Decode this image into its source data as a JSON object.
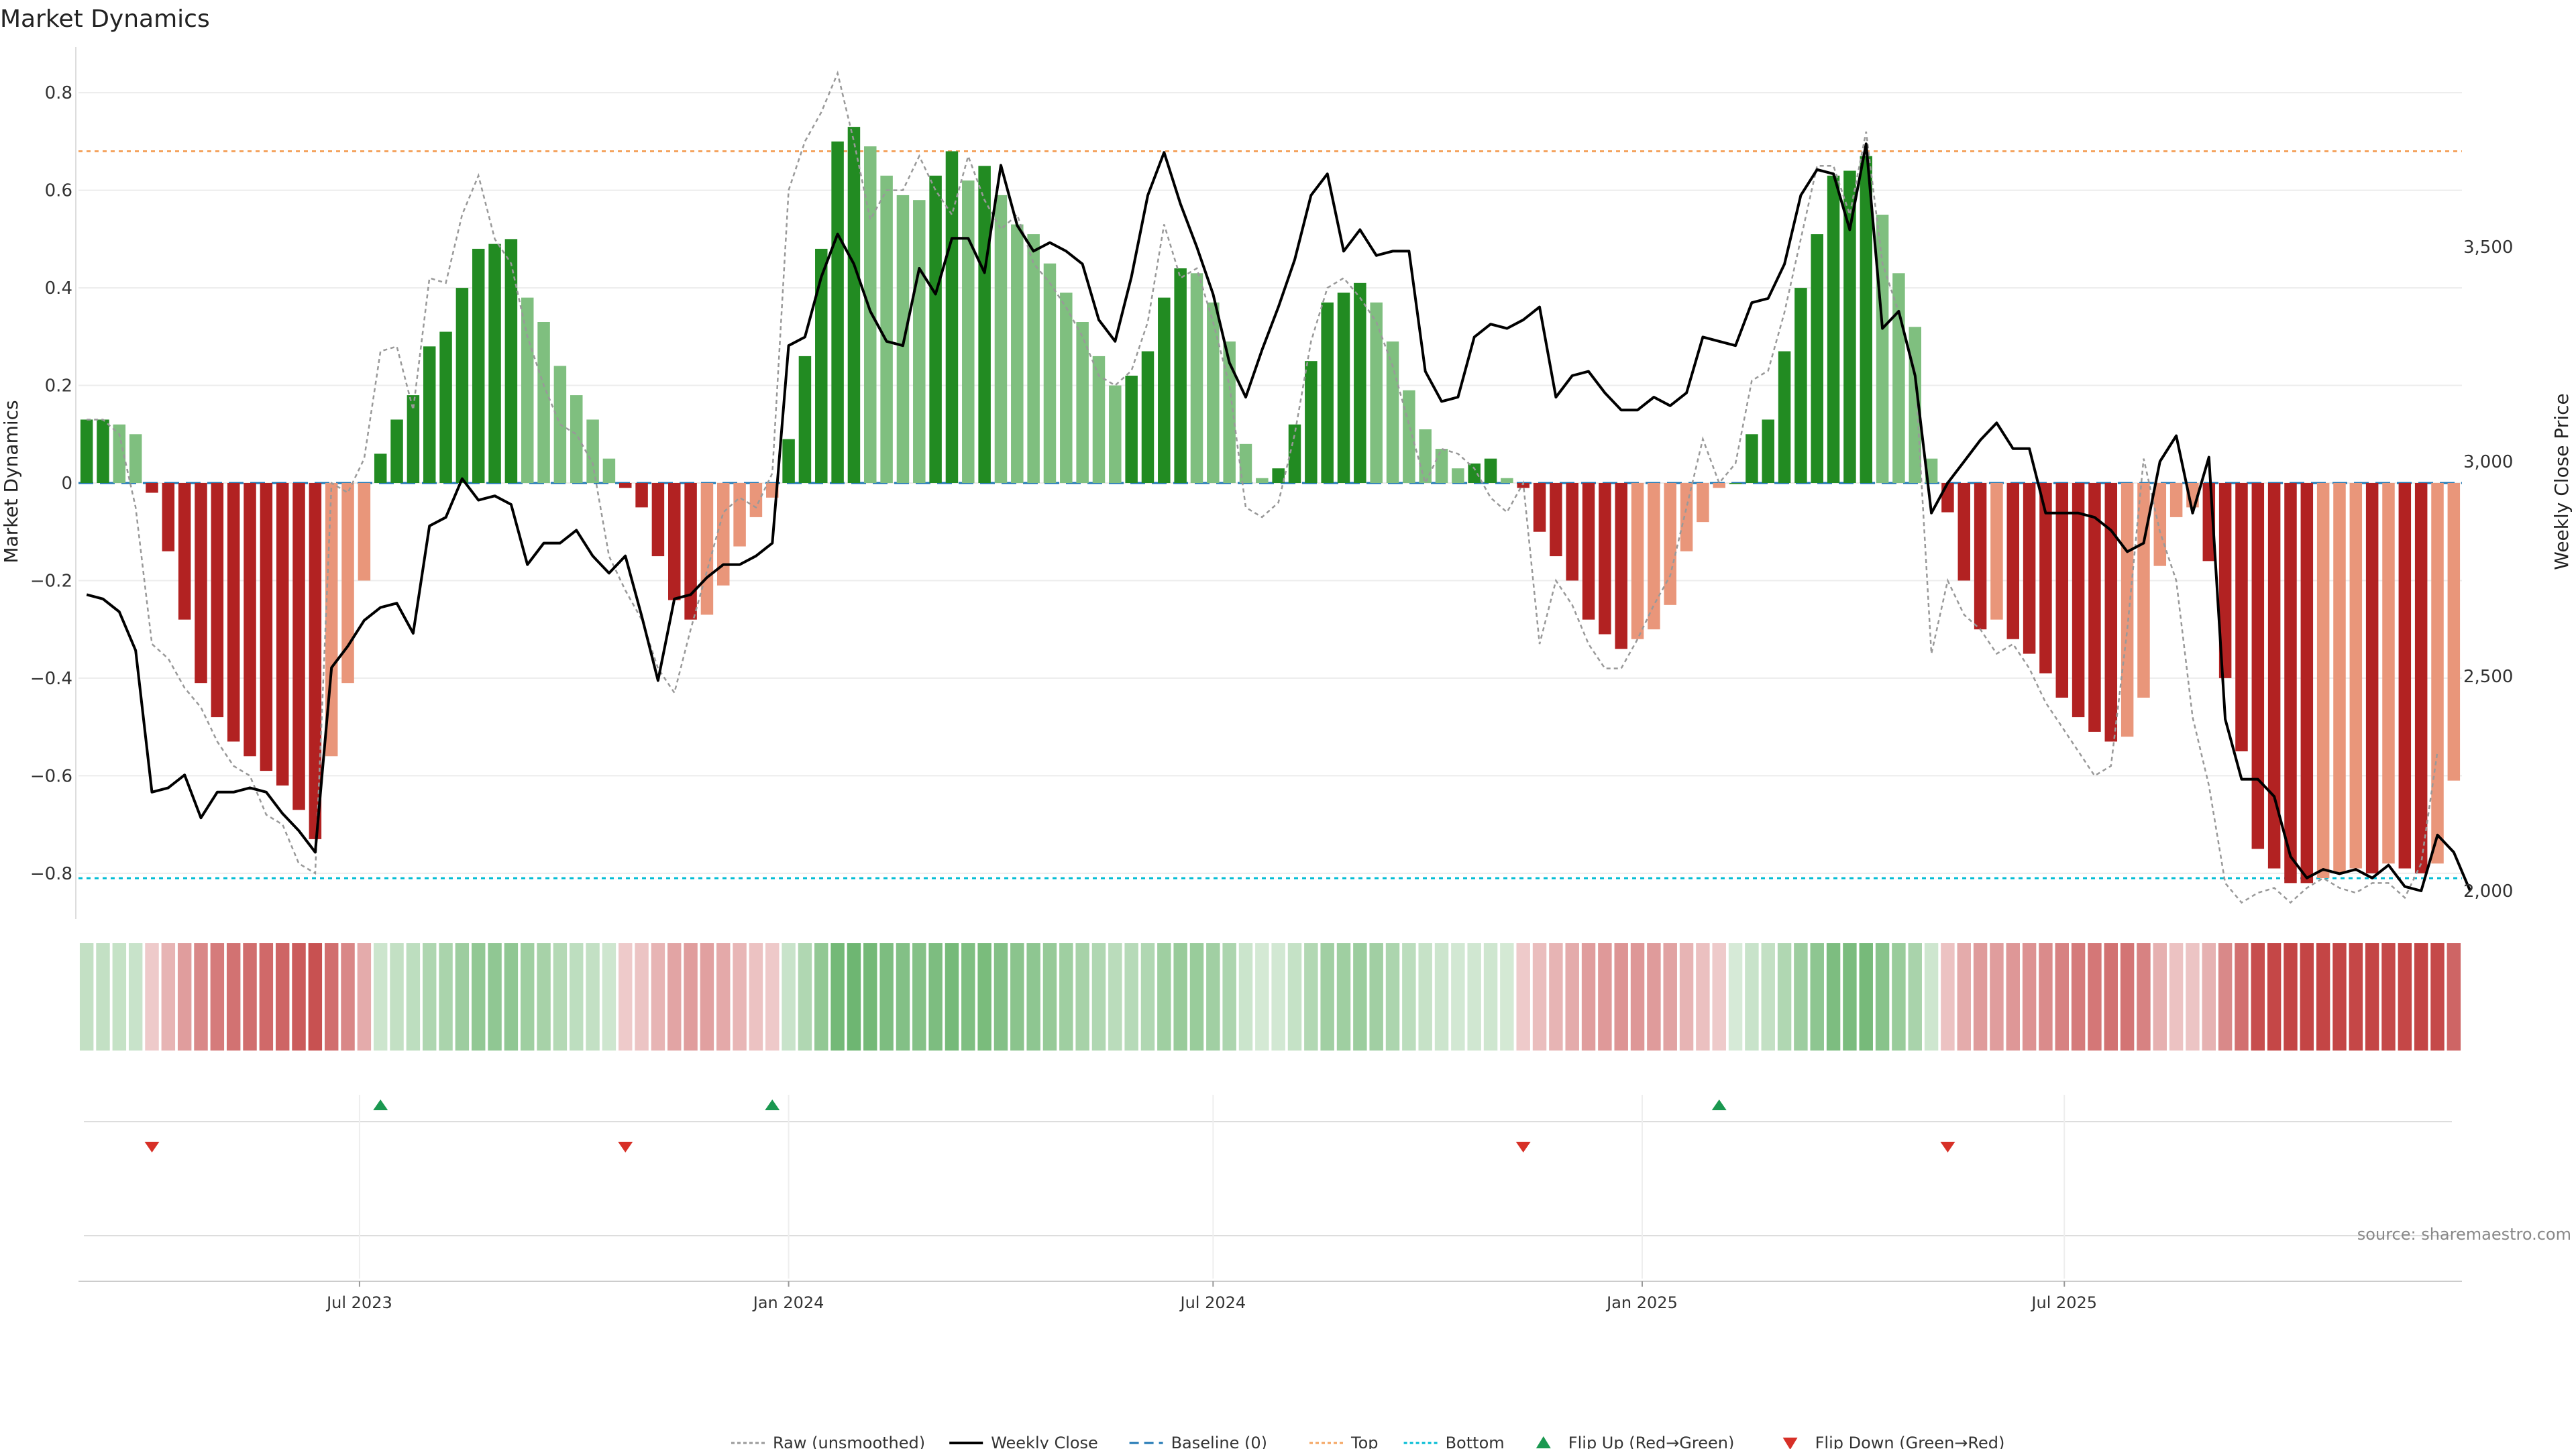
{
  "title": "Market Dynamics",
  "source_note": "source: sharemaestro.com",
  "chart_data": {
    "type": "bar",
    "start_date": "2023-03-06",
    "interval_days": 7,
    "ylabel_left": "Market Dynamics",
    "ylabel_right": "Weekly Close Price",
    "ylim_left": [
      -0.88,
      0.88
    ],
    "ylim_right": [
      1950,
      3950
    ],
    "yticks_left": [
      -0.8,
      -0.6,
      -0.4,
      -0.2,
      0,
      0.2,
      0.4,
      0.6,
      0.8
    ],
    "yticks_left_labels": [
      "−0.8",
      "−0.6",
      "−0.4",
      "−0.2",
      "0",
      "0.2",
      "0.4",
      "0.6",
      "0.8"
    ],
    "yticks_right": [
      2000,
      2500,
      3000,
      3500
    ],
    "yticks_right_labels": [
      "2,000",
      "2,500",
      "3,000",
      "3,500"
    ],
    "xticks": [
      {
        "date": "2023-07-01",
        "label": "Jul 2023"
      },
      {
        "date": "2024-01-01",
        "label": "Jan 2024"
      },
      {
        "date": "2024-07-01",
        "label": "Jul 2024"
      },
      {
        "date": "2025-01-01",
        "label": "Jan 2025"
      },
      {
        "date": "2025-07-01",
        "label": "Jul 2025"
      }
    ],
    "top_level": 0.68,
    "bottom_level": -0.81,
    "grid": true,
    "legend_position": "bottom-center",
    "colors": {
      "pos_strong": "#228b22",
      "pos_weak": "#7fbf7f",
      "neg_strong": "#b22222",
      "neg_weak": "#e9967a",
      "close": "#000000",
      "raw": "#999999",
      "baseline": "#1f77b4",
      "top": "#f4a460",
      "bottom": "#00bcd4",
      "flip_up": "#1a9850",
      "flip_down": "#d73027"
    },
    "series": [
      {
        "name": "Market Dynamics",
        "kind": "bars",
        "values": [
          0.13,
          0.13,
          0.12,
          0.1,
          -0.02,
          -0.14,
          -0.28,
          -0.41,
          -0.48,
          -0.53,
          -0.56,
          -0.59,
          -0.62,
          -0.67,
          -0.73,
          -0.56,
          -0.41,
          -0.2,
          0.06,
          0.13,
          0.18,
          0.28,
          0.31,
          0.4,
          0.48,
          0.49,
          0.5,
          0.38,
          0.33,
          0.24,
          0.18,
          0.13,
          0.05,
          -0.01,
          -0.05,
          -0.15,
          -0.24,
          -0.28,
          -0.27,
          -0.21,
          -0.13,
          -0.07,
          -0.03,
          0.09,
          0.26,
          0.48,
          0.7,
          0.73,
          0.69,
          0.63,
          0.59,
          0.58,
          0.63,
          0.68,
          0.62,
          0.65,
          0.59,
          0.53,
          0.51,
          0.45,
          0.39,
          0.33,
          0.26,
          0.2,
          0.22,
          0.27,
          0.38,
          0.44,
          0.43,
          0.37,
          0.29,
          0.08,
          0.01,
          0.03,
          0.12,
          0.25,
          0.37,
          0.39,
          0.41,
          0.37,
          0.29,
          0.19,
          0.11,
          0.07,
          0.03,
          0.04,
          0.05,
          0.01,
          -0.01,
          -0.1,
          -0.15,
          -0.2,
          -0.28,
          -0.31,
          -0.34,
          -0.32,
          -0.3,
          -0.25,
          -0.14,
          -0.08,
          -0.01,
          0.0,
          0.1,
          0.13,
          0.27,
          0.4,
          0.51,
          0.63,
          0.64,
          0.67,
          0.55,
          0.43,
          0.32,
          0.05,
          -0.06,
          -0.2,
          -0.3,
          -0.28,
          -0.32,
          -0.35,
          -0.39,
          -0.44,
          -0.48,
          -0.51,
          -0.53,
          -0.52,
          -0.44,
          -0.17,
          -0.07,
          -0.05,
          -0.16,
          -0.4,
          -0.55,
          -0.75,
          -0.79,
          -0.82,
          -0.82,
          -0.81,
          -0.8,
          -0.79,
          -0.8,
          -0.78,
          -0.79,
          -0.8,
          -0.78,
          -0.61
        ]
      },
      {
        "name": "Raw (unsmoothed)",
        "kind": "line",
        "values": [
          0.13,
          0.13,
          0.1,
          -0.05,
          -0.33,
          -0.36,
          -0.42,
          -0.46,
          -0.53,
          -0.58,
          -0.6,
          -0.68,
          -0.7,
          -0.78,
          -0.8,
          0.0,
          -0.02,
          0.05,
          0.27,
          0.28,
          0.15,
          0.42,
          0.41,
          0.55,
          0.63,
          0.5,
          0.45,
          0.3,
          0.2,
          0.12,
          0.1,
          0.04,
          -0.15,
          -0.22,
          -0.28,
          -0.38,
          -0.43,
          -0.3,
          -0.18,
          -0.06,
          -0.03,
          -0.05,
          0.02,
          0.6,
          0.7,
          0.76,
          0.84,
          0.7,
          0.54,
          0.6,
          0.6,
          0.67,
          0.6,
          0.55,
          0.67,
          0.58,
          0.52,
          0.55,
          0.45,
          0.41,
          0.36,
          0.3,
          0.22,
          0.2,
          0.23,
          0.33,
          0.53,
          0.42,
          0.44,
          0.33,
          0.2,
          -0.05,
          -0.07,
          -0.04,
          0.1,
          0.29,
          0.4,
          0.42,
          0.38,
          0.33,
          0.24,
          0.12,
          0.0,
          0.07,
          0.06,
          0.03,
          -0.03,
          -0.06,
          0.0,
          -0.33,
          -0.2,
          -0.25,
          -0.33,
          -0.38,
          -0.38,
          -0.32,
          -0.25,
          -0.19,
          -0.05,
          0.09,
          0.0,
          0.04,
          0.21,
          0.23,
          0.35,
          0.5,
          0.65,
          0.65,
          0.55,
          0.72,
          0.45,
          0.35,
          0.23,
          -0.35,
          -0.2,
          -0.27,
          -0.3,
          -0.35,
          -0.33,
          -0.38,
          -0.45,
          -0.5,
          -0.55,
          -0.6,
          -0.58,
          -0.3,
          0.05,
          -0.1,
          -0.2,
          -0.48,
          -0.62,
          -0.82,
          -0.86,
          -0.84,
          -0.83,
          -0.86,
          -0.83,
          -0.81,
          -0.83,
          -0.84,
          -0.82,
          -0.82,
          -0.85,
          -0.78,
          -0.55
        ]
      },
      {
        "name": "Weekly Close",
        "kind": "line",
        "axis": "right",
        "values": [
          2690,
          2680,
          2650,
          2560,
          2230,
          2240,
          2270,
          2170,
          2230,
          2230,
          2240,
          2230,
          2180,
          2140,
          2090,
          2520,
          2570,
          2630,
          2660,
          2670,
          2600,
          2850,
          2870,
          2960,
          2910,
          2920,
          2900,
          2760,
          2810,
          2810,
          2840,
          2780,
          2740,
          2780,
          2640,
          2490,
          2680,
          2690,
          2730,
          2760,
          2760,
          2780,
          2810,
          3270,
          3290,
          3430,
          3530,
          3460,
          3350,
          3280,
          3270,
          3450,
          3390,
          3520,
          3520,
          3440,
          3690,
          3550,
          3490,
          3510,
          3490,
          3460,
          3330,
          3280,
          3430,
          3620,
          3720,
          3600,
          3500,
          3390,
          3230,
          3150,
          3260,
          3360,
          3470,
          3620,
          3670,
          3490,
          3540,
          3480,
          3490,
          3490,
          3210,
          3140,
          3150,
          3290,
          3320,
          3310,
          3330,
          3360,
          3150,
          3200,
          3210,
          3160,
          3120,
          3120,
          3150,
          3130,
          3160,
          3290,
          3280,
          3270,
          3370,
          3380,
          3460,
          3620,
          3680,
          3670,
          3540,
          3740,
          3310,
          3350,
          3200,
          2880,
          2950,
          3000,
          3050,
          3090,
          3030,
          3030,
          2880,
          2880,
          2880,
          2870,
          2840,
          2790,
          2810,
          3000,
          3060,
          2880,
          3010,
          2400,
          2260,
          2260,
          2220,
          2080,
          2030,
          2050,
          2040,
          2050,
          2030,
          2060,
          2010,
          2000,
          2130,
          2090,
          2000
        ]
      }
    ],
    "flips_up_weeks": [
      18,
      42,
      100
    ],
    "flips_down_weeks": [
      4,
      33,
      88,
      114
    ]
  },
  "legend": [
    {
      "key": "raw",
      "label": "Raw (unsmoothed)"
    },
    {
      "key": "close",
      "label": "Weekly Close"
    },
    {
      "key": "baseline",
      "label": "Baseline (0)"
    },
    {
      "key": "top",
      "label": "Top"
    },
    {
      "key": "bottom",
      "label": "Bottom"
    },
    {
      "key": "flip_up",
      "label": "Flip Up (Red→Green)"
    },
    {
      "key": "flip_down",
      "label": "Flip Down (Green→Red)"
    }
  ]
}
